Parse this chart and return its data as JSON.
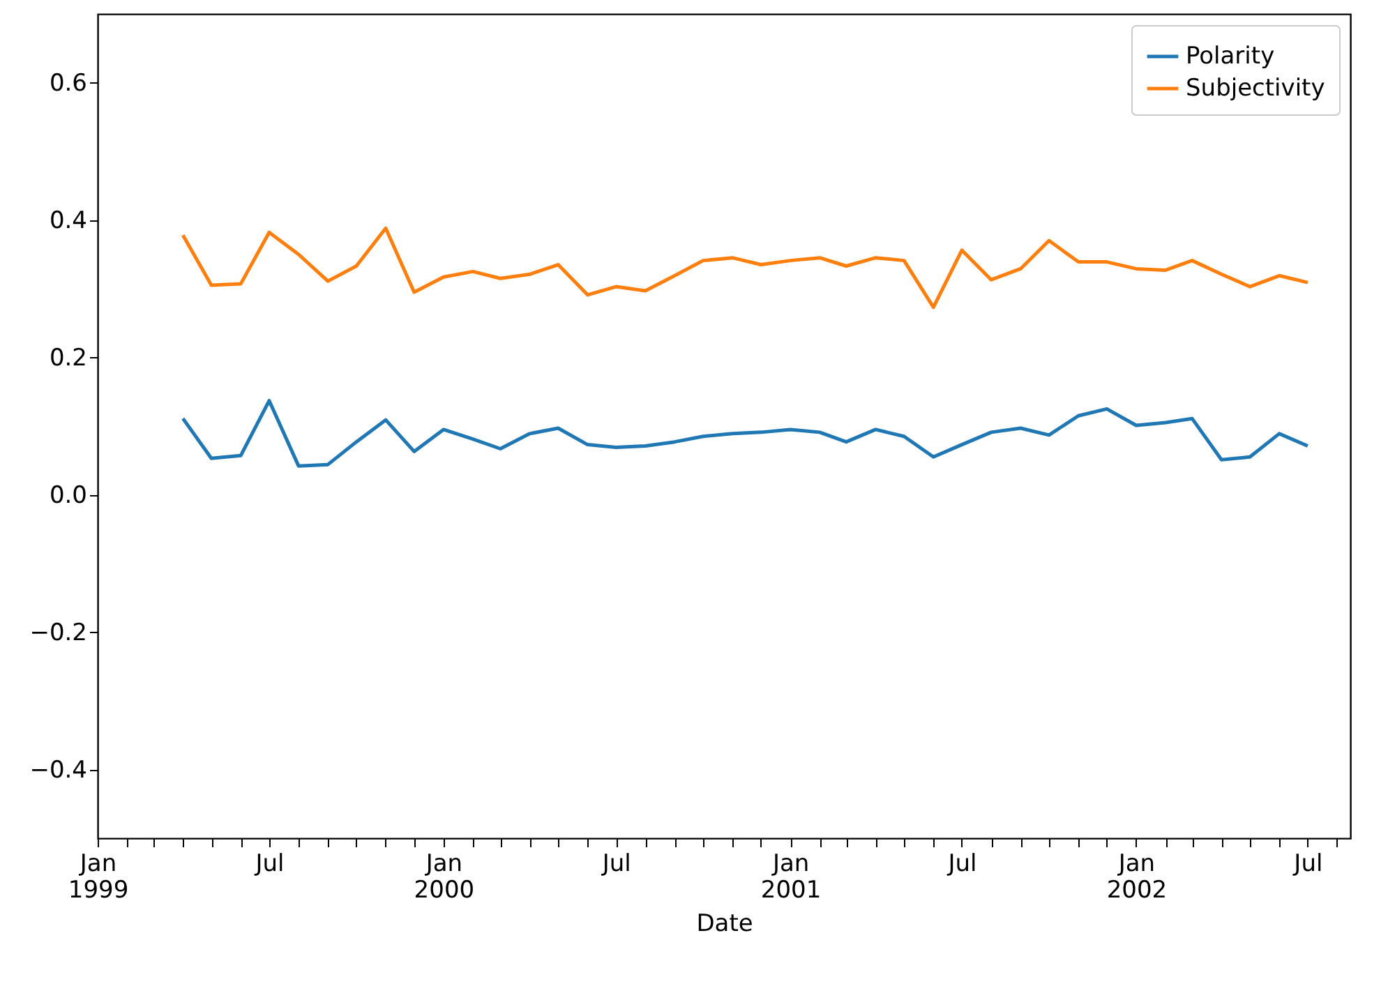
{
  "chart_data": {
    "type": "line",
    "xlabel": "Date",
    "x": [
      "1999-04",
      "1999-05",
      "1999-06",
      "1999-07",
      "1999-08",
      "1999-09",
      "1999-10",
      "1999-11",
      "1999-12",
      "2000-01",
      "2000-02",
      "2000-03",
      "2000-04",
      "2000-05",
      "2000-06",
      "2000-07",
      "2000-08",
      "2000-09",
      "2000-10",
      "2000-11",
      "2000-12",
      "2001-01",
      "2001-02",
      "2001-03",
      "2001-04",
      "2001-05",
      "2001-06",
      "2001-07",
      "2001-08",
      "2001-09",
      "2001-10",
      "2001-11",
      "2001-12",
      "2002-01",
      "2002-02",
      "2002-03",
      "2002-04",
      "2002-05",
      "2002-06",
      "2002-07"
    ],
    "series": [
      {
        "name": "Polarity",
        "color": "#1f77b4",
        "values": [
          0.111,
          0.053,
          0.057,
          0.137,
          0.042,
          0.044,
          0.077,
          0.109,
          0.063,
          0.095,
          0.081,
          0.067,
          0.089,
          0.097,
          0.073,
          0.069,
          0.071,
          0.077,
          0.085,
          0.089,
          0.091,
          0.095,
          0.091,
          0.077,
          0.095,
          0.085,
          0.055,
          0.073,
          0.091,
          0.097,
          0.087,
          0.115,
          0.125,
          0.101,
          0.105,
          0.111,
          0.051,
          0.055,
          0.089,
          0.071
        ]
      },
      {
        "name": "Subjectivity",
        "color": "#ff7f0e",
        "values": [
          0.378,
          0.305,
          0.307,
          0.382,
          0.35,
          0.311,
          0.333,
          0.388,
          0.295,
          0.317,
          0.325,
          0.315,
          0.321,
          0.335,
          0.291,
          0.303,
          0.297,
          0.319,
          0.341,
          0.345,
          0.335,
          0.341,
          0.345,
          0.333,
          0.345,
          0.341,
          0.273,
          0.356,
          0.313,
          0.329,
          0.37,
          0.339,
          0.339,
          0.329,
          0.327,
          0.341,
          0.321,
          0.303,
          0.319,
          0.309
        ]
      }
    ],
    "xlim": [
      "1999-01",
      "2002-08-15"
    ],
    "xticks": [
      {
        "value": "1999-01",
        "label": "Jan\n1999"
      },
      {
        "value": "1999-02",
        "label": null
      },
      {
        "value": "1999-03",
        "label": null
      },
      {
        "value": "1999-04",
        "label": null
      },
      {
        "value": "1999-05",
        "label": null
      },
      {
        "value": "1999-06",
        "label": null
      },
      {
        "value": "1999-07",
        "label": "Jul"
      },
      {
        "value": "1999-08",
        "label": null
      },
      {
        "value": "1999-09",
        "label": null
      },
      {
        "value": "1999-10",
        "label": null
      },
      {
        "value": "1999-11",
        "label": null
      },
      {
        "value": "1999-12",
        "label": null
      },
      {
        "value": "2000-01",
        "label": "Jan\n2000"
      },
      {
        "value": "2000-02",
        "label": null
      },
      {
        "value": "2000-03",
        "label": null
      },
      {
        "value": "2000-04",
        "label": null
      },
      {
        "value": "2000-05",
        "label": null
      },
      {
        "value": "2000-06",
        "label": null
      },
      {
        "value": "2000-07",
        "label": "Jul"
      },
      {
        "value": "2000-08",
        "label": null
      },
      {
        "value": "2000-09",
        "label": null
      },
      {
        "value": "2000-10",
        "label": null
      },
      {
        "value": "2000-11",
        "label": null
      },
      {
        "value": "2000-12",
        "label": null
      },
      {
        "value": "2001-01",
        "label": "Jan\n2001"
      },
      {
        "value": "2001-02",
        "label": null
      },
      {
        "value": "2001-03",
        "label": null
      },
      {
        "value": "2001-04",
        "label": null
      },
      {
        "value": "2001-05",
        "label": null
      },
      {
        "value": "2001-06",
        "label": null
      },
      {
        "value": "2001-07",
        "label": "Jul"
      },
      {
        "value": "2001-08",
        "label": null
      },
      {
        "value": "2001-09",
        "label": null
      },
      {
        "value": "2001-10",
        "label": null
      },
      {
        "value": "2001-11",
        "label": null
      },
      {
        "value": "2001-12",
        "label": null
      },
      {
        "value": "2002-01",
        "label": "Jan\n2002"
      },
      {
        "value": "2002-02",
        "label": null
      },
      {
        "value": "2002-03",
        "label": null
      },
      {
        "value": "2002-04",
        "label": null
      },
      {
        "value": "2002-05",
        "label": null
      },
      {
        "value": "2002-06",
        "label": null
      },
      {
        "value": "2002-07",
        "label": "Jul"
      },
      {
        "value": "2002-08",
        "label": null
      }
    ],
    "ylim": [
      -0.5,
      0.7
    ],
    "yticks": [
      {
        "value": -0.4,
        "label": "−0.4"
      },
      {
        "value": -0.2,
        "label": "−0.2"
      },
      {
        "value": 0,
        "label": "0.0"
      },
      {
        "value": 0.2,
        "label": "0.2"
      },
      {
        "value": 0.4,
        "label": "0.4"
      },
      {
        "value": 0.6,
        "label": "0.6"
      }
    ],
    "grid": false,
    "legend": "top right",
    "marker": "none",
    "line_style": "solid"
  }
}
